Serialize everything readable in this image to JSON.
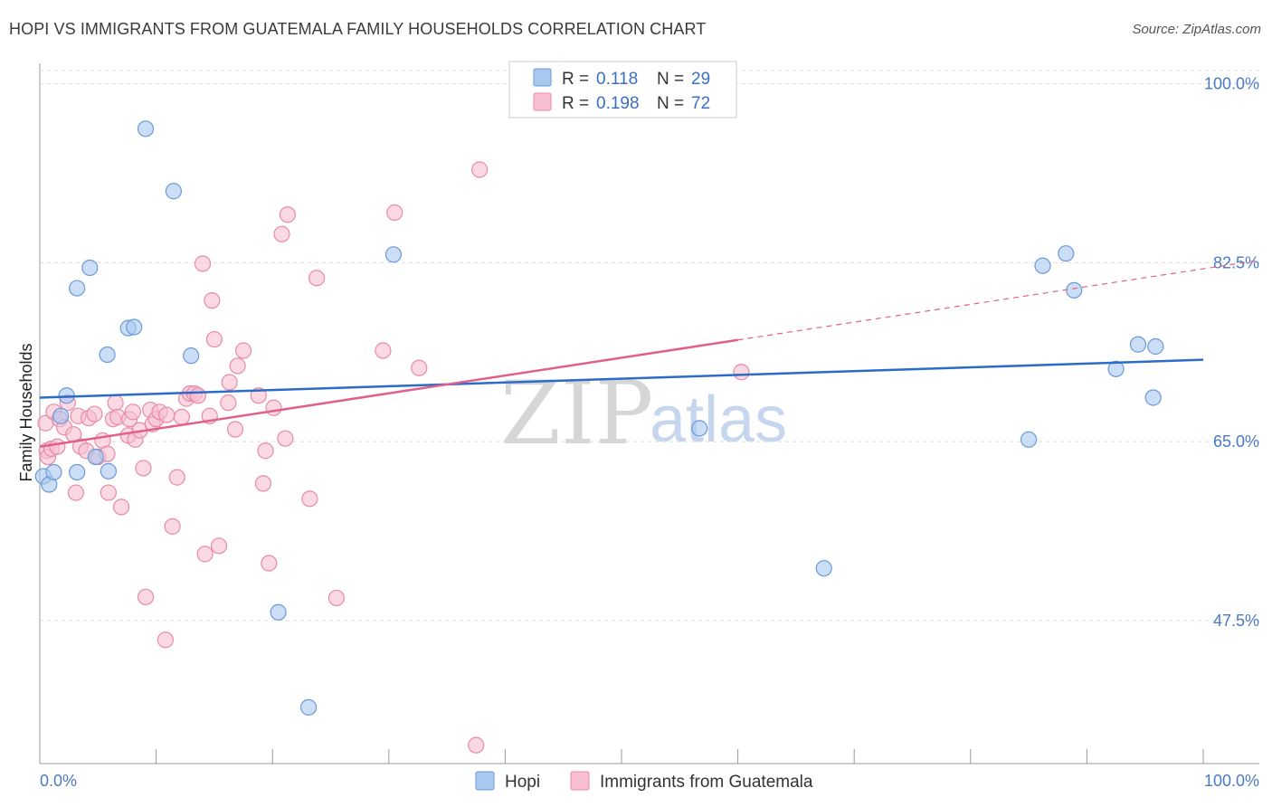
{
  "header": {
    "title": "HOPI VS IMMIGRANTS FROM GUATEMALA FAMILY HOUSEHOLDS CORRELATION CHART",
    "source": "Source: ZipAtlas.com"
  },
  "watermark": {
    "zip": "ZIP",
    "atlas": "atlas"
  },
  "colors": {
    "hopi_fill": "#a8c8f0",
    "hopi_stroke": "#6a9ad8",
    "hopi_line": "#2b6cc8",
    "guatemala_fill": "#f7bfd0",
    "guatemala_stroke": "#e88aa8",
    "guatemala_line": "#e0608a",
    "grid": "#dddddd",
    "tick_label": "#4a7ac7"
  },
  "legend": {
    "rows": [
      {
        "r_label": "R =",
        "r_value": "0.118",
        "n_label": "N =",
        "n_value": "29"
      },
      {
        "r_label": "R =",
        "r_value": "0.198",
        "n_label": "N =",
        "n_value": "72"
      }
    ]
  },
  "bottom_legend": {
    "hopi": "Hopi",
    "guatemala": "Immigrants from Guatemala"
  },
  "chart_data": {
    "type": "scatter",
    "title": "HOPI VS IMMIGRANTS FROM GUATEMALA FAMILY HOUSEHOLDS CORRELATION CHART",
    "xlabel": "",
    "ylabel": "Family Households",
    "xlim": [
      0,
      100
    ],
    "ylim": [
      33.5,
      102
    ],
    "x_tick_labels": [
      "0.0%",
      "100.0%"
    ],
    "y_ticks": [
      {
        "value": 100.0,
        "label": "100.0%"
      },
      {
        "value": 82.5,
        "label": "82.5%"
      },
      {
        "value": 65.0,
        "label": "65.0%"
      },
      {
        "value": 47.5,
        "label": "47.5%"
      }
    ],
    "grid": true,
    "legend_position": "top-center",
    "series": [
      {
        "name": "Hopi",
        "r": 0.118,
        "n": 29,
        "trend": {
          "x0": 0,
          "y0": 69.3,
          "x1": 100,
          "y1": 73.0,
          "dashed_from": null
        },
        "points": [
          [
            0.3,
            61.6
          ],
          [
            0.8,
            60.8
          ],
          [
            1.2,
            62.0
          ],
          [
            1.8,
            67.5
          ],
          [
            2.3,
            69.5
          ],
          [
            3.2,
            62.0
          ],
          [
            3.2,
            80.0
          ],
          [
            4.3,
            82.0
          ],
          [
            4.8,
            63.5
          ],
          [
            5.8,
            73.5
          ],
          [
            5.9,
            62.1
          ],
          [
            7.6,
            76.1
          ],
          [
            8.1,
            76.2
          ],
          [
            9.1,
            95.6
          ],
          [
            11.5,
            89.5
          ],
          [
            13.0,
            73.4
          ],
          [
            20.5,
            48.3
          ],
          [
            23.1,
            39.0
          ],
          [
            30.4,
            83.3
          ],
          [
            56.7,
            66.3
          ],
          [
            67.4,
            52.6
          ],
          [
            85.0,
            65.2
          ],
          [
            86.2,
            82.2
          ],
          [
            88.2,
            83.4
          ],
          [
            88.9,
            79.8
          ],
          [
            92.5,
            72.1
          ],
          [
            94.4,
            74.5
          ],
          [
            95.7,
            69.3
          ],
          [
            95.9,
            74.3
          ]
        ]
      },
      {
        "name": "Immigrants from Guatemala",
        "r": 0.198,
        "n": 72,
        "trend": {
          "x0": 0,
          "y0": 64.5,
          "x1": 100,
          "y1": 81.9,
          "dashed_from": 60
        },
        "points": [
          [
            0.5,
            66.8
          ],
          [
            0.6,
            64.1
          ],
          [
            0.7,
            63.5
          ],
          [
            1.0,
            64.3
          ],
          [
            1.2,
            67.9
          ],
          [
            1.5,
            64.5
          ],
          [
            1.7,
            67.2
          ],
          [
            2.1,
            66.4
          ],
          [
            2.4,
            68.8
          ],
          [
            2.9,
            65.7
          ],
          [
            3.1,
            60.0
          ],
          [
            3.3,
            67.5
          ],
          [
            3.5,
            64.5
          ],
          [
            4.0,
            64.1
          ],
          [
            4.2,
            67.3
          ],
          [
            4.7,
            67.7
          ],
          [
            5.0,
            63.5
          ],
          [
            5.4,
            65.1
          ],
          [
            5.8,
            63.8
          ],
          [
            5.9,
            60.0
          ],
          [
            6.3,
            67.2
          ],
          [
            6.5,
            68.8
          ],
          [
            6.7,
            67.4
          ],
          [
            7.0,
            58.6
          ],
          [
            7.6,
            65.6
          ],
          [
            7.7,
            67.2
          ],
          [
            8.0,
            67.9
          ],
          [
            8.2,
            65.2
          ],
          [
            8.6,
            66.1
          ],
          [
            8.9,
            62.4
          ],
          [
            9.1,
            49.8
          ],
          [
            9.5,
            68.1
          ],
          [
            9.7,
            66.7
          ],
          [
            10.0,
            67.2
          ],
          [
            10.3,
            67.9
          ],
          [
            10.8,
            45.6
          ],
          [
            10.9,
            67.6
          ],
          [
            11.4,
            56.7
          ],
          [
            11.8,
            61.5
          ],
          [
            12.2,
            67.4
          ],
          [
            12.6,
            69.2
          ],
          [
            12.9,
            69.7
          ],
          [
            13.3,
            69.7
          ],
          [
            13.6,
            69.5
          ],
          [
            14.0,
            82.4
          ],
          [
            14.2,
            54.0
          ],
          [
            14.6,
            67.5
          ],
          [
            14.8,
            78.8
          ],
          [
            15.0,
            75.0
          ],
          [
            15.4,
            54.8
          ],
          [
            16.2,
            68.8
          ],
          [
            16.3,
            70.8
          ],
          [
            16.8,
            66.2
          ],
          [
            17.0,
            72.4
          ],
          [
            17.5,
            73.9
          ],
          [
            18.8,
            69.5
          ],
          [
            19.2,
            60.9
          ],
          [
            19.4,
            64.1
          ],
          [
            19.7,
            53.1
          ],
          [
            20.1,
            68.3
          ],
          [
            20.8,
            85.3
          ],
          [
            21.1,
            65.3
          ],
          [
            21.3,
            87.2
          ],
          [
            23.2,
            59.4
          ],
          [
            23.8,
            81.0
          ],
          [
            25.5,
            49.7
          ],
          [
            29.5,
            73.9
          ],
          [
            30.5,
            87.4
          ],
          [
            32.6,
            72.2
          ],
          [
            37.5,
            35.3
          ],
          [
            37.8,
            91.6
          ],
          [
            60.3,
            71.8
          ]
        ]
      }
    ]
  }
}
